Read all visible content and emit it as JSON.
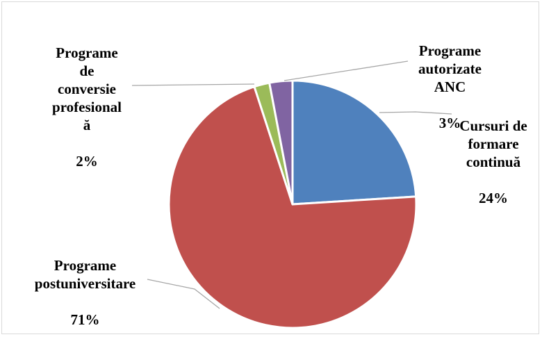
{
  "chart_data": {
    "type": "pie",
    "start_angle_deg": 0,
    "direction": "clockwise",
    "slices": [
      {
        "label": "Cursuri de\nformare\ncontinuă",
        "percent_label": "24%",
        "value": 24,
        "color": "#4f81bd"
      },
      {
        "label": "Programe\npostuniversitare",
        "percent_label": "71%",
        "value": 71,
        "color": "#c0504d"
      },
      {
        "label": "Programe\nde\nconversie\nprofesional\nă",
        "percent_label": "2%",
        "value": 2,
        "color": "#9bbb59"
      },
      {
        "label": "Programe\nautorizate\nANC",
        "percent_label": "3%",
        "value": 3,
        "color": "#8064a2"
      }
    ],
    "leader_line_color": "#a6a6a6",
    "legend": "none"
  }
}
